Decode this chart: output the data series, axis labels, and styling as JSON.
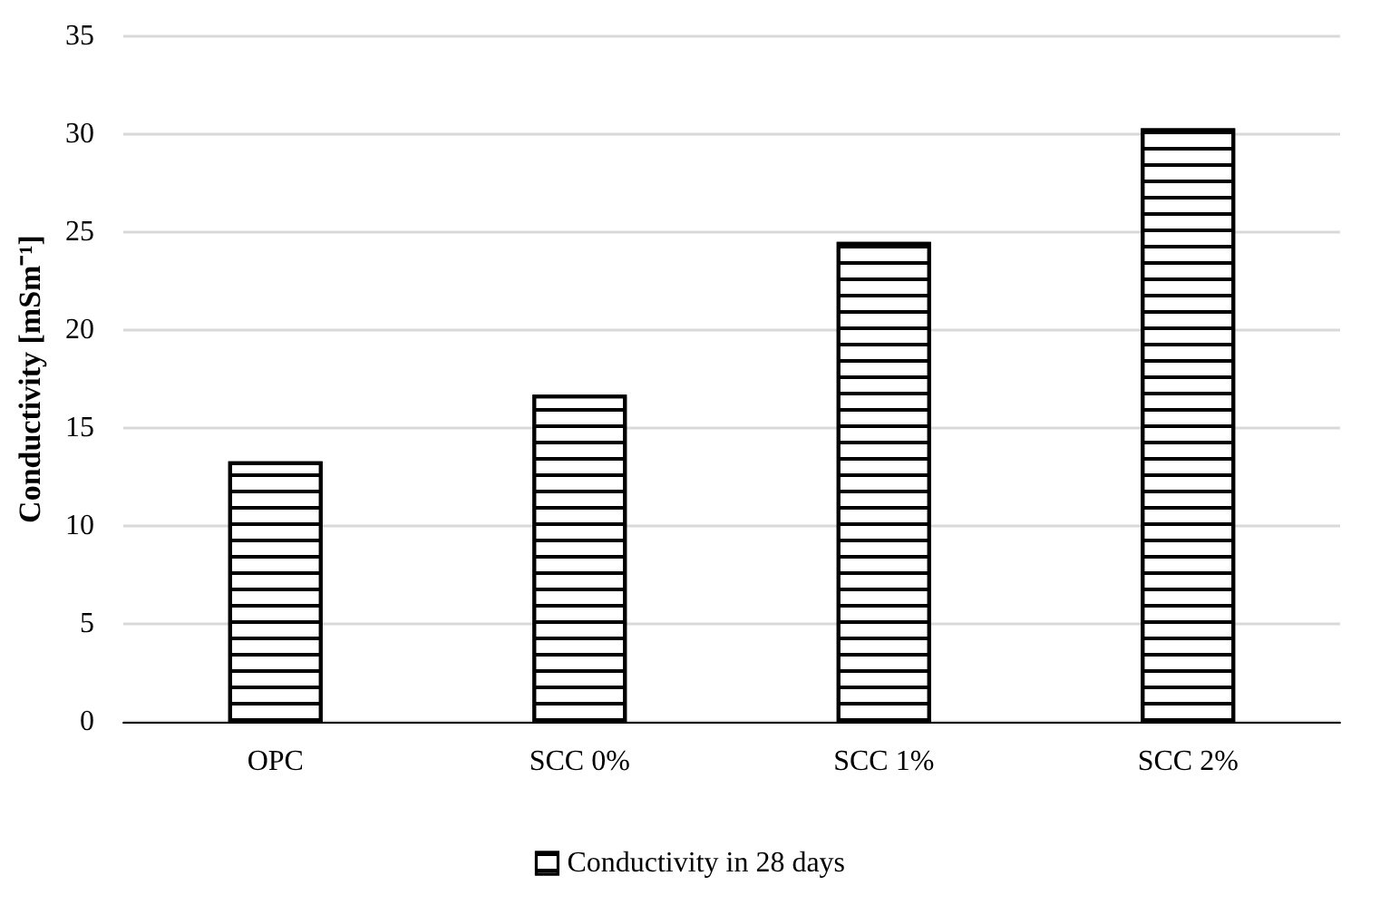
{
  "chart_data": {
    "type": "bar",
    "categories": [
      "OPC",
      "SCC 0%",
      "SCC 1%",
      "SCC 2%"
    ],
    "series": [
      {
        "name": "Conductivity in 28 days",
        "color": "#000000",
        "values": [
          13.3,
          16.7,
          24.5,
          30.3
        ]
      }
    ],
    "ylabel": "Conductivity [mSm⁻¹]",
    "ylim": [
      0,
      35
    ],
    "yticks": [
      0,
      5,
      10,
      15,
      20,
      25,
      30,
      35
    ],
    "grid": "y",
    "legend": "bottom"
  }
}
